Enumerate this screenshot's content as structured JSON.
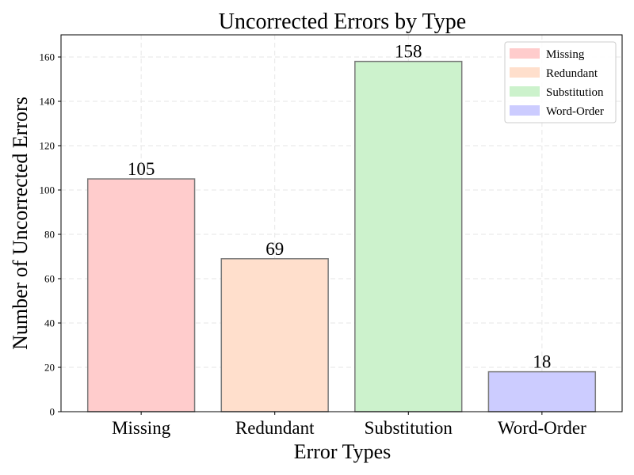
{
  "chart_data": {
    "type": "bar",
    "title": "Uncorrected Errors by Type",
    "xlabel": "Error Types",
    "ylabel": "Number of Uncorrected Errors",
    "categories": [
      "Missing",
      "Redundant",
      "Substitution",
      "Word-Order"
    ],
    "values": [
      105,
      69,
      158,
      18
    ],
    "data_labels": [
      "105",
      "69",
      "158",
      "18"
    ],
    "colors": [
      "#ffcccc",
      "#ffdfcc",
      "#ccf2cc",
      "#ccccff"
    ],
    "edge_color": "#7a7a7a",
    "ylim": [
      0,
      170
    ],
    "yticks": [
      0,
      20,
      40,
      60,
      80,
      100,
      120,
      140,
      160
    ],
    "grid": true,
    "legend_position": "top-right",
    "legend": [
      "Missing",
      "Redundant",
      "Substitution",
      "Word-Order"
    ]
  }
}
